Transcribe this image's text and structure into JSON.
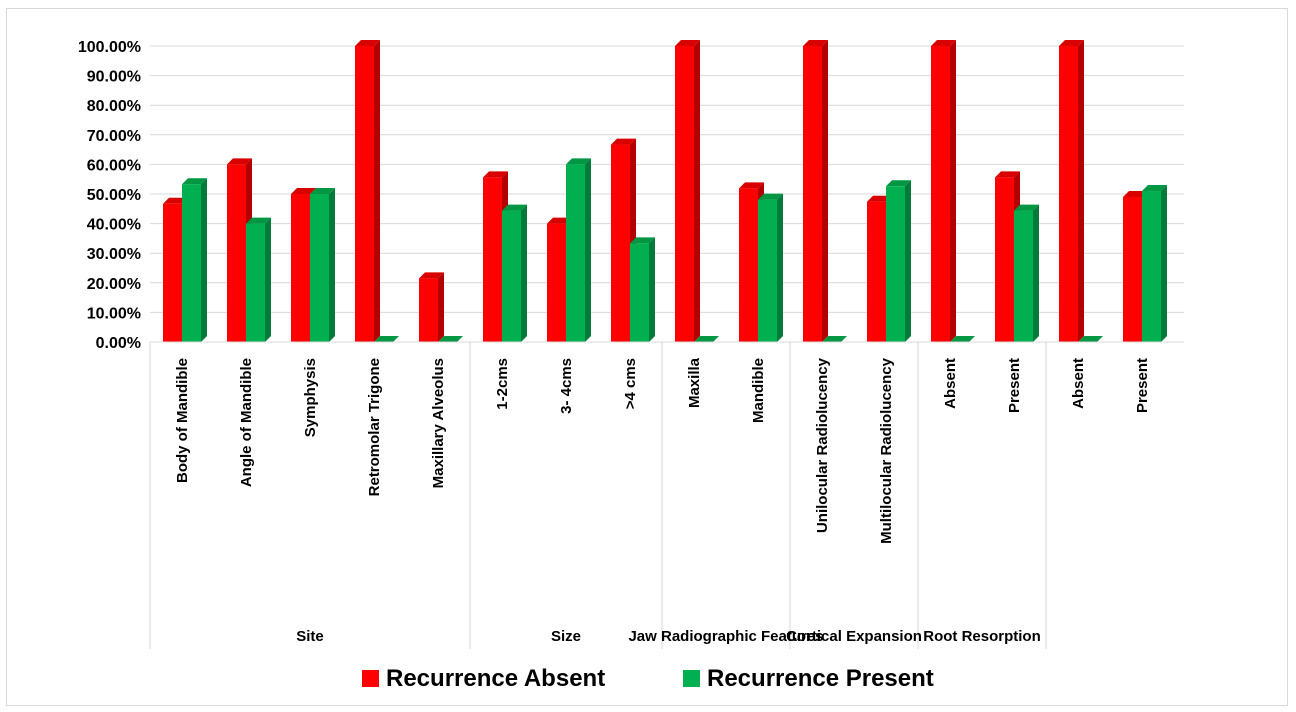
{
  "chart_data": {
    "type": "bar",
    "title": "",
    "xlabel": "",
    "ylabel": "",
    "ylim": [
      0,
      100
    ],
    "y_ticks": [
      "0.00%",
      "10.00%",
      "20.00%",
      "30.00%",
      "40.00%",
      "50.00%",
      "60.00%",
      "70.00%",
      "80.00%",
      "90.00%",
      "100.00%"
    ],
    "grid": true,
    "legend_position": "bottom",
    "style": "3d-columns",
    "groups": [
      {
        "label": "Site",
        "start": 0,
        "end": 4
      },
      {
        "label": "Size",
        "start": 5,
        "end": 7
      },
      {
        "label": "Jaw Radiographic Features",
        "start": 8,
        "end": 9
      },
      {
        "label": "Cortical Expansion",
        "start": 10,
        "end": 11
      },
      {
        "label": "Root Resorption",
        "start": 12,
        "end": 13
      }
    ],
    "categories": [
      "Body of Mandible",
      "Angle of Mandible",
      "Symphysis",
      "Retromolar Trigone",
      "Maxillary Alveolus",
      "1-2cms",
      "3- 4cms",
      ">4 cms",
      "Maxilla",
      "Mandible",
      "Unilocular Radiolucency",
      "Multilocular Radiolucency",
      "Absent",
      "Present",
      "Absent",
      "Present"
    ],
    "series": [
      {
        "name": "Recurrence Absent",
        "color": "#ff0000",
        "values": [
          46.7,
          60.0,
          50.0,
          100.0,
          21.5,
          55.6,
          40.0,
          66.7,
          100.0,
          51.9,
          100.0,
          47.4,
          100.0,
          55.6,
          100.0,
          49.0
        ]
      },
      {
        "name": "Recurrence Present",
        "color": "#00b050",
        "values": [
          53.3,
          40.0,
          50.0,
          0.0,
          0.0,
          44.4,
          60.0,
          33.3,
          0.0,
          48.1,
          0.0,
          52.6,
          0.0,
          44.4,
          0.0,
          51.0
        ]
      }
    ]
  }
}
